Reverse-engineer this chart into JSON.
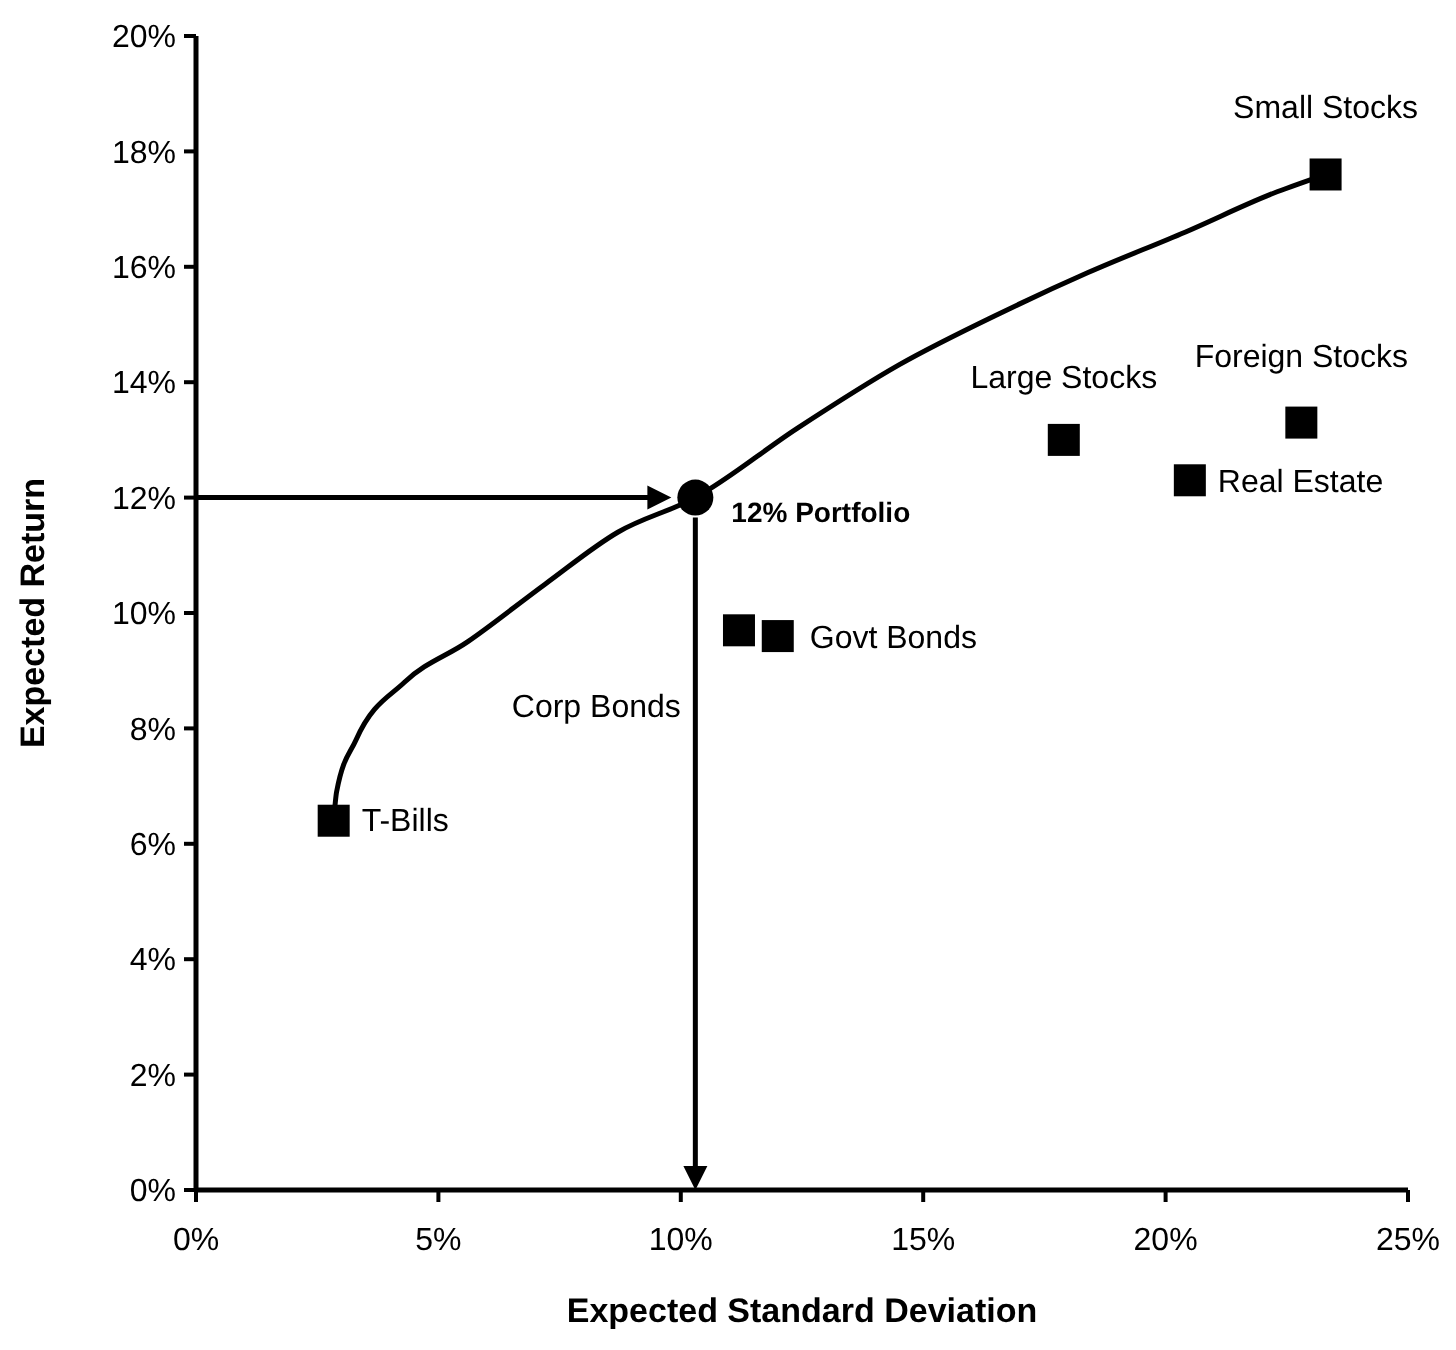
{
  "chart_data": {
    "type": "scatter",
    "xlabel": "Expected Standard Deviation",
    "ylabel": "Expected Return",
    "xlim": [
      0,
      25
    ],
    "ylim": [
      0,
      20
    ],
    "xticks": [
      {
        "value": 0,
        "label": "0%"
      },
      {
        "value": 5,
        "label": "5%"
      },
      {
        "value": 10,
        "label": "10%"
      },
      {
        "value": 15,
        "label": "15%"
      },
      {
        "value": 20,
        "label": "20%"
      },
      {
        "value": 25,
        "label": "25%"
      }
    ],
    "yticks": [
      {
        "value": 0,
        "label": "0%"
      },
      {
        "value": 2,
        "label": "2%"
      },
      {
        "value": 4,
        "label": "4%"
      },
      {
        "value": 6,
        "label": "6%"
      },
      {
        "value": 8,
        "label": "8%"
      },
      {
        "value": 10,
        "label": "10%"
      },
      {
        "value": 12,
        "label": "12%"
      },
      {
        "value": 14,
        "label": "14%"
      },
      {
        "value": 16,
        "label": "16%"
      },
      {
        "value": 18,
        "label": "18%"
      },
      {
        "value": 20,
        "label": "20%"
      }
    ],
    "grid": false,
    "series": [
      {
        "type": "line",
        "color": "#000000",
        "marker": "none",
        "line_style": "solid",
        "x": [
          2.84,
          2.9,
          3.3,
          4.3,
          5.6,
          7.2,
          8.7,
          10.3,
          12.4,
          14.5,
          16.6,
          18.4,
          20.4,
          22.3,
          23.3
        ],
        "values": [
          6.4,
          6.9,
          7.8,
          8.8,
          9.5,
          10.5,
          11.4,
          12.0,
          13.2,
          14.3,
          15.2,
          15.9,
          16.6,
          17.3,
          17.6
        ]
      },
      {
        "color": "#000000",
        "marker": "square",
        "x": [
          2.84,
          11.2,
          12.0,
          17.9,
          22.8,
          20.5,
          23.3
        ],
        "values": [
          6.4,
          9.7,
          9.6,
          13.0,
          13.3,
          12.3,
          17.6
        ]
      },
      {
        "color": "#000000",
        "marker": "circle",
        "x": [
          10.3
        ],
        "values": [
          12.0
        ]
      }
    ],
    "annotations": [
      {
        "text": "T-Bills",
        "x": 2.84,
        "y": 6.4
      },
      "Corp Bonds",
      {
        "text": "Govt Bonds",
        "x": 12.0,
        "y": 9.6
      },
      {
        "text": "Large Stocks",
        "x": 17.9,
        "y": 13.0
      },
      {
        "text": "Foreign Stocks",
        "x": 22.8,
        "y": 13.3
      },
      {
        "text": "Real Estate",
        "x": 20.5,
        "y": 12.3
      },
      {
        "text": "Small Stocks",
        "x": 23.3,
        "y": 17.6
      },
      {
        "text": "12% Portfolio",
        "x": 10.3,
        "y": 12.0
      }
    ]
  }
}
